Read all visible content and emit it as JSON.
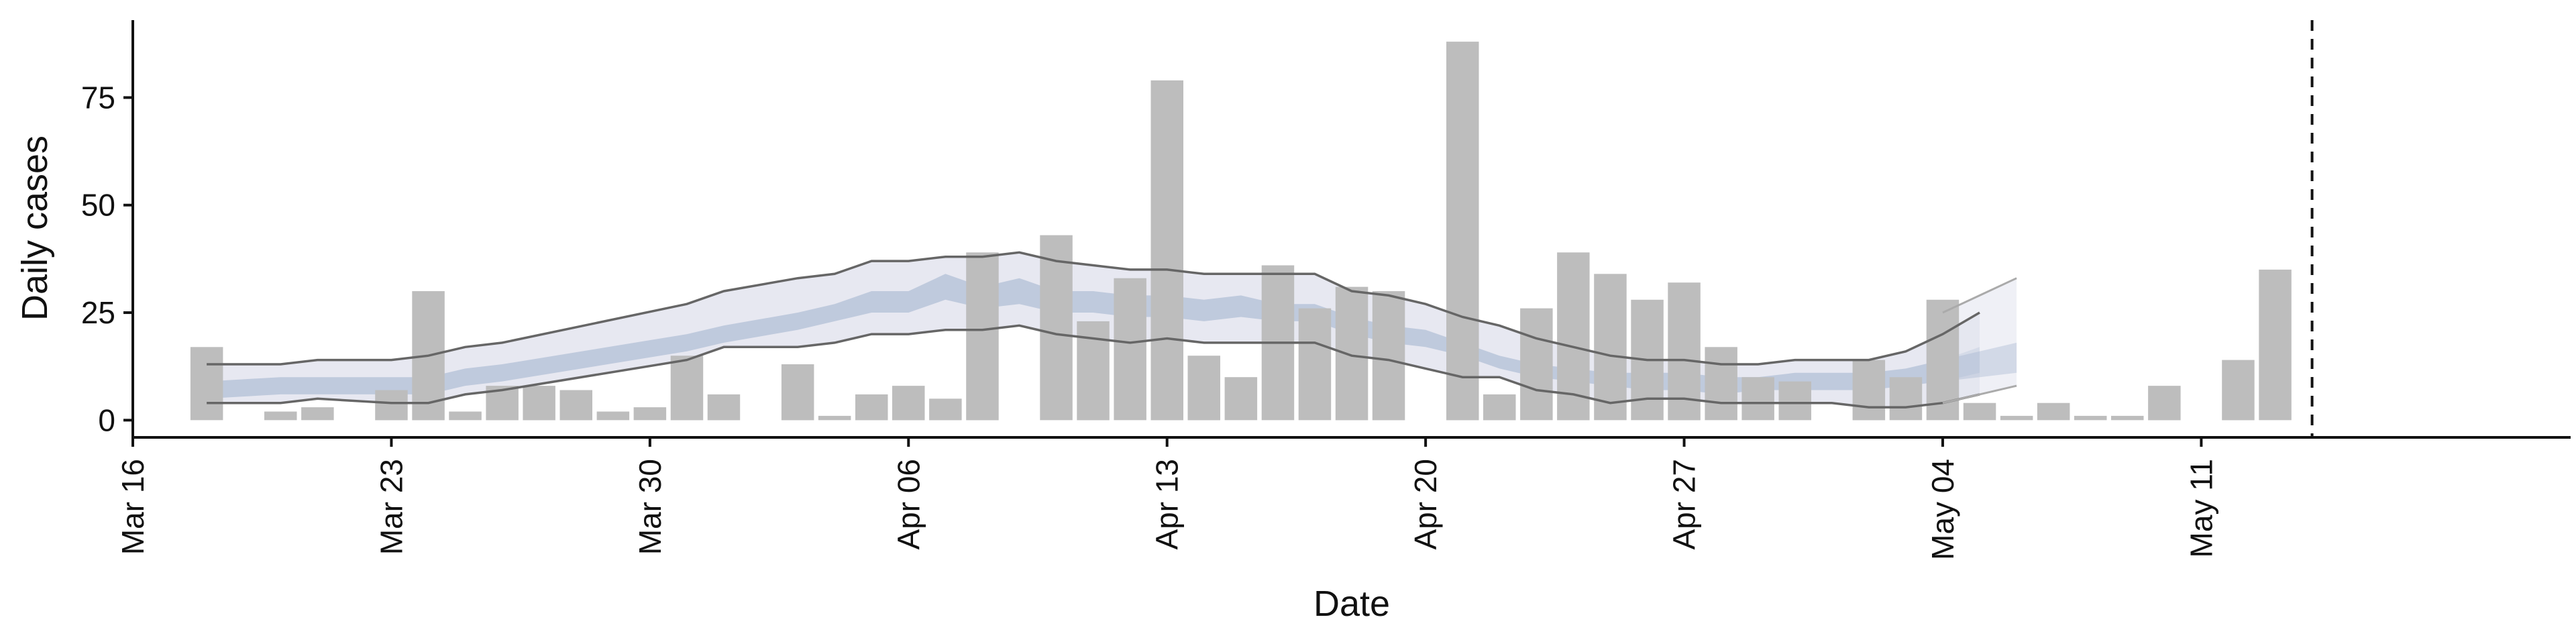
{
  "chart_data": {
    "type": "bar",
    "title": "",
    "xlabel": "Date",
    "ylabel": "Daily cases",
    "x_tick_labels": [
      "Mar 16",
      "Mar 23",
      "Mar 30",
      "Apr 06",
      "Apr 13",
      "Apr 20",
      "Apr 27",
      "May 04",
      "May 11"
    ],
    "y_ticks": [
      0,
      25,
      50,
      75
    ],
    "ylim": [
      -4,
      93
    ],
    "xlim": [
      "2020-03-16",
      "2020-05-21"
    ],
    "grid": false,
    "legend": "none",
    "bar_color": "#bdbdbd",
    "band_colors": {
      "inner": "#9fb0cc",
      "outer": "#e4e6f0",
      "lines": "#666666"
    },
    "vertical_marker_date": "2020-05-14",
    "series": [
      {
        "kind": "bars",
        "points": [
          [
            "2020-03-18",
            17
          ],
          [
            "2020-03-20",
            2
          ],
          [
            "2020-03-21",
            3
          ],
          [
            "2020-03-23",
            7
          ],
          [
            "2020-03-24",
            30
          ],
          [
            "2020-03-25",
            2
          ],
          [
            "2020-03-26",
            8
          ],
          [
            "2020-03-27",
            8
          ],
          [
            "2020-03-28",
            7
          ],
          [
            "2020-03-29",
            2
          ],
          [
            "2020-03-30",
            3
          ],
          [
            "2020-03-31",
            15
          ],
          [
            "2020-04-01",
            6
          ],
          [
            "2020-04-03",
            13
          ],
          [
            "2020-04-04",
            1
          ],
          [
            "2020-04-05",
            6
          ],
          [
            "2020-04-06",
            8
          ],
          [
            "2020-04-07",
            5
          ],
          [
            "2020-04-08",
            39
          ],
          [
            "2020-04-10",
            43
          ],
          [
            "2020-04-11",
            23
          ],
          [
            "2020-04-12",
            33
          ],
          [
            "2020-04-13",
            79
          ],
          [
            "2020-04-14",
            15
          ],
          [
            "2020-04-15",
            10
          ],
          [
            "2020-04-16",
            36
          ],
          [
            "2020-04-17",
            26
          ],
          [
            "2020-04-18",
            31
          ],
          [
            "2020-04-19",
            30
          ],
          [
            "2020-04-21",
            88
          ],
          [
            "2020-04-22",
            6
          ],
          [
            "2020-04-23",
            26
          ],
          [
            "2020-04-24",
            39
          ],
          [
            "2020-04-25",
            34
          ],
          [
            "2020-04-26",
            28
          ],
          [
            "2020-04-27",
            32
          ],
          [
            "2020-04-28",
            17
          ],
          [
            "2020-04-29",
            10
          ],
          [
            "2020-04-30",
            9
          ],
          [
            "2020-05-02",
            14
          ],
          [
            "2020-05-03",
            10
          ],
          [
            "2020-05-04",
            28
          ],
          [
            "2020-05-05",
            4
          ],
          [
            "2020-05-06",
            1
          ],
          [
            "2020-05-07",
            4
          ],
          [
            "2020-05-08",
            1
          ],
          [
            "2020-05-09",
            1
          ],
          [
            "2020-05-10",
            8
          ],
          [
            "2020-05-12",
            14
          ],
          [
            "2020-05-13",
            35
          ]
        ]
      },
      {
        "kind": "interval",
        "dates": [
          "2020-03-18",
          "2020-03-20",
          "2020-03-21",
          "2020-03-23",
          "2020-03-24",
          "2020-03-25",
          "2020-03-26",
          "2020-03-31",
          "2020-04-01",
          "2020-04-03",
          "2020-04-04",
          "2020-04-05",
          "2020-04-06",
          "2020-04-07",
          "2020-04-08",
          "2020-04-09",
          "2020-04-10",
          "2020-04-11",
          "2020-04-12",
          "2020-04-13",
          "2020-04-14",
          "2020-04-15",
          "2020-04-16",
          "2020-04-17",
          "2020-04-18",
          "2020-04-19",
          "2020-04-20",
          "2020-04-21",
          "2020-04-22",
          "2020-04-23",
          "2020-04-24",
          "2020-04-25",
          "2020-04-26",
          "2020-04-27",
          "2020-04-28",
          "2020-04-29",
          "2020-04-30",
          "2020-05-01",
          "2020-05-02",
          "2020-05-03",
          "2020-05-04",
          "2020-05-05"
        ],
        "outer_upper": [
          13,
          13,
          14,
          14,
          15,
          17,
          18,
          27,
          30,
          33,
          34,
          37,
          37,
          38,
          38,
          39,
          37,
          36,
          35,
          35,
          34,
          34,
          34,
          34,
          30,
          29,
          27,
          24,
          22,
          19,
          17,
          15,
          14,
          14,
          13,
          13,
          14,
          14,
          14,
          16,
          20,
          25
        ],
        "inner_upper": [
          9,
          10,
          10,
          10,
          10,
          12,
          13,
          20,
          22,
          25,
          27,
          30,
          30,
          34,
          31,
          33,
          30,
          30,
          29,
          29,
          28,
          29,
          27,
          27,
          24,
          22,
          21,
          18,
          15,
          13,
          12,
          11,
          11,
          11,
          10,
          10,
          11,
          11,
          11,
          12,
          14,
          17
        ],
        "inner_lower": [
          5,
          6,
          6,
          6,
          6,
          8,
          9,
          16,
          18,
          21,
          23,
          25,
          25,
          28,
          26,
          27,
          25,
          25,
          24,
          24,
          23,
          24,
          23,
          23,
          20,
          18,
          17,
          15,
          12,
          10,
          9,
          8,
          7,
          7,
          6,
          7,
          7,
          7,
          7,
          8,
          9,
          11
        ],
        "outer_lower": [
          4,
          4,
          5,
          4,
          4,
          6,
          7,
          14,
          17,
          17,
          18,
          20,
          20,
          21,
          21,
          22,
          20,
          19,
          18,
          19,
          18,
          18,
          18,
          18,
          15,
          14,
          12,
          10,
          10,
          7,
          6,
          4,
          5,
          5,
          4,
          4,
          4,
          4,
          3,
          3,
          4,
          6
        ],
        "extension": {
          "dates": [
            "2020-05-04",
            "2020-05-05",
            "2020-05-06"
          ],
          "outer_upper": [
            25,
            29,
            33
          ],
          "inner_upper": [
            14,
            16,
            18
          ],
          "inner_lower": [
            9,
            10,
            11
          ],
          "outer_lower": [
            4,
            6,
            8
          ]
        }
      }
    ]
  }
}
